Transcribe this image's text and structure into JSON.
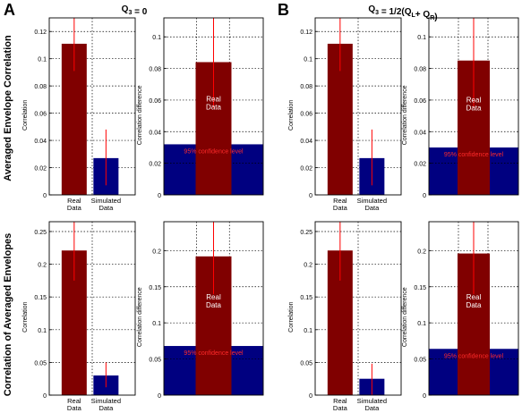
{
  "figure": {
    "panel_letters": [
      "A",
      "B"
    ],
    "column_titles": [
      "Q3 = 0",
      "Q3 = 1/2(QL+ QR)"
    ],
    "row_labels": [
      "Averaged Envelope Correlation",
      "Correlation of Averaged Envelopes"
    ],
    "colors": {
      "real": "#800000",
      "simulated": "#000080",
      "error_bar": "#ff0000",
      "confidence_text": "#ff2a2a"
    }
  },
  "chart_data": [
    {
      "type": "bar",
      "panel": "A",
      "row": 1,
      "subplot": "correlation",
      "categories": [
        "Real Data",
        "Simulated Data"
      ],
      "values": [
        0.111,
        0.027
      ],
      "error_low": [
        0.091,
        0.007
      ],
      "error_high": [
        0.13,
        0.048
      ],
      "ylabel": "Correlation",
      "ylim": [
        0,
        0.13
      ],
      "yticks": [
        "0",
        "0.02",
        "0.04",
        "0.06",
        "0.08",
        "0.1",
        "0.12"
      ],
      "grid": true
    },
    {
      "type": "bar",
      "panel": "A",
      "row": 1,
      "subplot": "difference",
      "categories": [
        "Real Data"
      ],
      "values": [
        0.084
      ],
      "error_low": [
        0.055
      ],
      "error_high": [
        0.112
      ],
      "bar_label": "Real Data",
      "confidence_level": 0.032,
      "confidence_label": "95% confidence level",
      "ylabel": "Correlation difference",
      "ylim": [
        0,
        0.112
      ],
      "yticks": [
        "0",
        "0.02",
        "0.04",
        "0.06",
        "0.08",
        "0.1"
      ],
      "grid": true
    },
    {
      "type": "bar",
      "panel": "B",
      "row": 1,
      "subplot": "correlation",
      "categories": [
        "Real Data",
        "Simulated Data"
      ],
      "values": [
        0.111,
        0.027
      ],
      "error_low": [
        0.091,
        0.007
      ],
      "error_high": [
        0.13,
        0.048
      ],
      "ylabel": "Correlation",
      "ylim": [
        0,
        0.13
      ],
      "yticks": [
        "0",
        "0.02",
        "0.04",
        "0.06",
        "0.08",
        "0.1",
        "0.12"
      ],
      "grid": true
    },
    {
      "type": "bar",
      "panel": "B",
      "row": 1,
      "subplot": "difference",
      "categories": [
        "Real Data"
      ],
      "values": [
        0.085
      ],
      "error_low": [
        0.055
      ],
      "error_high": [
        0.112
      ],
      "bar_label": "Real Data",
      "confidence_level": 0.03,
      "confidence_label": "95% confidence level",
      "ylabel": "Correlation difference",
      "ylim": [
        0,
        0.112
      ],
      "yticks": [
        "0",
        "0.02",
        "0.04",
        "0.06",
        "0.08",
        "0.1"
      ],
      "grid": true
    },
    {
      "type": "bar",
      "panel": "A",
      "row": 2,
      "subplot": "correlation",
      "categories": [
        "Real Data",
        "Simulated Data"
      ],
      "values": [
        0.221,
        0.03
      ],
      "error_low": [
        0.175,
        0.012
      ],
      "error_high": [
        0.265,
        0.05
      ],
      "ylabel": "Correlation",
      "ylim": [
        0,
        0.265
      ],
      "yticks": [
        "0",
        "0.05",
        "0.1",
        "0.15",
        "0.2",
        "0.25"
      ],
      "grid": true
    },
    {
      "type": "bar",
      "panel": "A",
      "row": 2,
      "subplot": "difference",
      "categories": [
        "Real Data"
      ],
      "values": [
        0.192
      ],
      "error_low": [
        0.14
      ],
      "error_high": [
        0.24
      ],
      "bar_label": "Real Data",
      "confidence_level": 0.068,
      "confidence_label": "95% confidence level",
      "ylabel": "Correlation difference",
      "ylim": [
        0,
        0.24
      ],
      "yticks": [
        "0",
        "0.05",
        "0.1",
        "0.15",
        "0.2"
      ],
      "grid": true
    },
    {
      "type": "bar",
      "panel": "B",
      "row": 2,
      "subplot": "correlation",
      "categories": [
        "Real Data",
        "Simulated Data"
      ],
      "values": [
        0.221,
        0.025
      ],
      "error_low": [
        0.175,
        0.0
      ],
      "error_high": [
        0.265,
        0.048
      ],
      "ylabel": "Correlation",
      "ylim": [
        0,
        0.265
      ],
      "yticks": [
        "0",
        "0.05",
        "0.1",
        "0.15",
        "0.2",
        "0.25"
      ],
      "grid": true
    },
    {
      "type": "bar",
      "panel": "B",
      "row": 2,
      "subplot": "difference",
      "categories": [
        "Real Data"
      ],
      "values": [
        0.196
      ],
      "error_low": [
        0.14
      ],
      "error_high": [
        0.24
      ],
      "bar_label": "Real Data",
      "confidence_level": 0.064,
      "confidence_label": "95% confidence level",
      "ylabel": "Correlation difference",
      "ylim": [
        0,
        0.24
      ],
      "yticks": [
        "0",
        "0.05",
        "0.1",
        "0.15",
        "0.2"
      ],
      "grid": true
    }
  ]
}
